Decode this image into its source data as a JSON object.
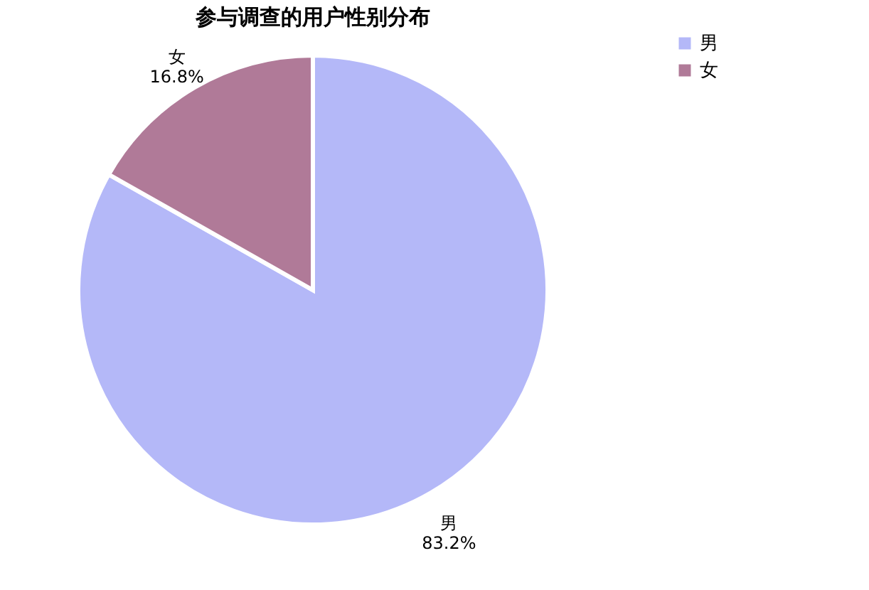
{
  "chart_data": {
    "type": "pie",
    "title": "参与调查的用户性别分布",
    "categories": [
      "男",
      "女"
    ],
    "values": [
      83.2,
      16.8
    ],
    "value_labels": [
      "83.2%",
      "16.8%"
    ],
    "colors": [
      "#b4b8f8",
      "#b07a98"
    ],
    "legend": "right"
  }
}
